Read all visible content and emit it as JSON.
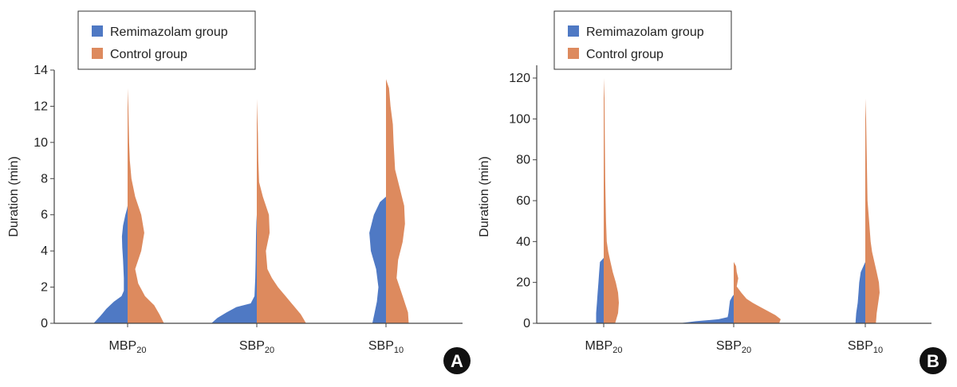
{
  "colors": {
    "remimazolam": "#4f79c4",
    "control": "#dd8a5e",
    "axis": "#444444",
    "badge": "#111111"
  },
  "chart_data": [
    {
      "type": "violin",
      "panel_label": "A",
      "ylabel": "Duration (min)",
      "ylim": [
        0,
        14
      ],
      "yticks": [
        0,
        2,
        4,
        6,
        8,
        10,
        12,
        14
      ],
      "categories": [
        {
          "base": "MBP",
          "sub": "20"
        },
        {
          "base": "SBP",
          "sub": "20"
        },
        {
          "base": "SBP",
          "sub": "10"
        }
      ],
      "legend": {
        "position": "top-left",
        "entries": [
          "Remimazolam group",
          "Control group"
        ]
      },
      "series": [
        {
          "name": "Remimazolam group",
          "side": "left",
          "profiles": [
            [
              [
                0,
                0.45
              ],
              [
                0.4,
                0.36
              ],
              [
                0.8,
                0.28
              ],
              [
                1.2,
                0.18
              ],
              [
                1.5,
                0.08
              ],
              [
                1.8,
                0.05
              ],
              [
                2.5,
                0.05
              ],
              [
                3.5,
                0.06
              ],
              [
                4.2,
                0.07
              ],
              [
                4.8,
                0.075
              ],
              [
                5.4,
                0.06
              ],
              [
                6,
                0.03
              ],
              [
                6.3,
                0.01
              ],
              [
                6.5,
                0
              ]
            ],
            [
              [
                0,
                0.6
              ],
              [
                0.3,
                0.52
              ],
              [
                0.6,
                0.4
              ],
              [
                0.9,
                0.27
              ],
              [
                1.1,
                0.08
              ],
              [
                1.5,
                0.03
              ],
              [
                2.5,
                0.02
              ],
              [
                3.5,
                0.015
              ],
              [
                4.5,
                0.012
              ],
              [
                5,
                0.01
              ],
              [
                5.6,
                0.005
              ],
              [
                6,
                0
              ]
            ],
            [
              [
                0,
                0.18
              ],
              [
                0.6,
                0.15
              ],
              [
                1.2,
                0.12
              ],
              [
                2,
                0.1
              ],
              [
                3,
                0.13
              ],
              [
                4,
                0.2
              ],
              [
                5,
                0.22
              ],
              [
                6,
                0.16
              ],
              [
                6.7,
                0.08
              ],
              [
                7,
                0
              ]
            ]
          ]
        },
        {
          "name": "Control group",
          "side": "right",
          "profiles": [
            [
              [
                0,
                0.48
              ],
              [
                0.5,
                0.42
              ],
              [
                1,
                0.35
              ],
              [
                1.5,
                0.23
              ],
              [
                2.2,
                0.14
              ],
              [
                3,
                0.1
              ],
              [
                4,
                0.18
              ],
              [
                5,
                0.22
              ],
              [
                6,
                0.18
              ],
              [
                7,
                0.1
              ],
              [
                8,
                0.05
              ],
              [
                9,
                0.03
              ],
              [
                10,
                0.02
              ],
              [
                11,
                0.015
              ],
              [
                12,
                0.01
              ],
              [
                13,
                0
              ]
            ],
            [
              [
                0,
                0.65
              ],
              [
                0.5,
                0.58
              ],
              [
                1,
                0.48
              ],
              [
                1.5,
                0.38
              ],
              [
                2,
                0.28
              ],
              [
                2.5,
                0.2
              ],
              [
                3,
                0.14
              ],
              [
                4,
                0.12
              ],
              [
                5,
                0.17
              ],
              [
                6,
                0.16
              ],
              [
                7,
                0.08
              ],
              [
                7.8,
                0.03
              ],
              [
                9,
                0.02
              ],
              [
                10.5,
                0.015
              ],
              [
                12.4,
                0
              ]
            ],
            [
              [
                0,
                0.3
              ],
              [
                0.6,
                0.29
              ],
              [
                1.5,
                0.22
              ],
              [
                2.5,
                0.14
              ],
              [
                3.5,
                0.16
              ],
              [
                4.5,
                0.22
              ],
              [
                5.5,
                0.25
              ],
              [
                6.5,
                0.24
              ],
              [
                7.5,
                0.18
              ],
              [
                8.5,
                0.12
              ],
              [
                10,
                0.1
              ],
              [
                11,
                0.09
              ],
              [
                12,
                0.06
              ],
              [
                13,
                0.04
              ],
              [
                13.5,
                0
              ]
            ]
          ]
        }
      ]
    },
    {
      "type": "violin",
      "panel_label": "B",
      "ylabel": "Duration (min)",
      "ylim": [
        0,
        125
      ],
      "yticks": [
        0,
        20,
        40,
        60,
        80,
        100,
        120
      ],
      "categories": [
        {
          "base": "MBP",
          "sub": "20"
        },
        {
          "base": "SBP",
          "sub": "20"
        },
        {
          "base": "SBP",
          "sub": "10"
        }
      ],
      "legend": {
        "position": "top-left",
        "entries": [
          "Remimazolam group",
          "Control group"
        ]
      },
      "series": [
        {
          "name": "Remimazolam group",
          "side": "left",
          "profiles": [
            [
              [
                0,
                0.1
              ],
              [
                5,
                0.1
              ],
              [
                10,
                0.09
              ],
              [
                15,
                0.08
              ],
              [
                20,
                0.07
              ],
              [
                25,
                0.06
              ],
              [
                30,
                0.05
              ],
              [
                32,
                0
              ]
            ],
            [
              [
                0,
                0.72
              ],
              [
                1,
                0.5
              ],
              [
                2,
                0.2
              ],
              [
                3,
                0.08
              ],
              [
                5,
                0.07
              ],
              [
                8,
                0.06
              ],
              [
                11,
                0.05
              ],
              [
                13,
                0.02
              ],
              [
                14,
                0
              ]
            ],
            [
              [
                0,
                0.13
              ],
              [
                5,
                0.12
              ],
              [
                10,
                0.1
              ],
              [
                15,
                0.09
              ],
              [
                20,
                0.08
              ],
              [
                25,
                0.06
              ],
              [
                30,
                0
              ]
            ]
          ]
        },
        {
          "name": "Control group",
          "side": "right",
          "profiles": [
            [
              [
                0,
                0.15
              ],
              [
                5,
                0.19
              ],
              [
                10,
                0.2
              ],
              [
                15,
                0.19
              ],
              [
                20,
                0.16
              ],
              [
                25,
                0.12
              ],
              [
                30,
                0.09
              ],
              [
                35,
                0.06
              ],
              [
                40,
                0.04
              ],
              [
                50,
                0.03
              ],
              [
                70,
                0.02
              ],
              [
                90,
                0.015
              ],
              [
                110,
                0.01
              ],
              [
                120,
                0
              ]
            ],
            [
              [
                0,
                0.6
              ],
              [
                2,
                0.62
              ],
              [
                4,
                0.55
              ],
              [
                6,
                0.45
              ],
              [
                8,
                0.35
              ],
              [
                10,
                0.25
              ],
              [
                12,
                0.17
              ],
              [
                15,
                0.1
              ],
              [
                18,
                0.04
              ],
              [
                22,
                0.06
              ],
              [
                25,
                0.04
              ],
              [
                28,
                0.03
              ],
              [
                30,
                0
              ]
            ],
            [
              [
                0,
                0.14
              ],
              [
                5,
                0.15
              ],
              [
                10,
                0.17
              ],
              [
                15,
                0.19
              ],
              [
                20,
                0.18
              ],
              [
                25,
                0.15
              ],
              [
                30,
                0.12
              ],
              [
                35,
                0.09
              ],
              [
                40,
                0.07
              ],
              [
                50,
                0.05
              ],
              [
                60,
                0.03
              ],
              [
                80,
                0.02
              ],
              [
                100,
                0.01
              ],
              [
                110,
                0
              ]
            ]
          ]
        }
      ]
    }
  ]
}
